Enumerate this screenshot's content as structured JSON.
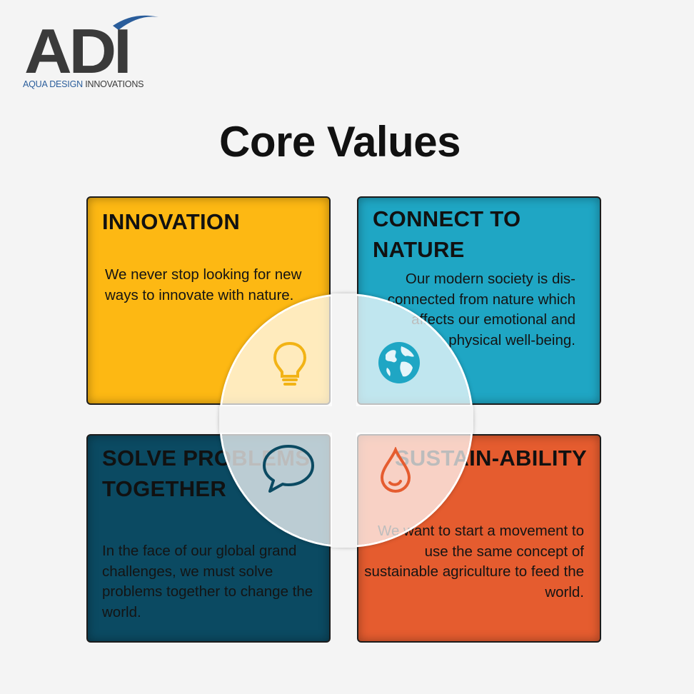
{
  "logo": {
    "mark": "ADI",
    "tagline_part1": "AQUA DESIGN ",
    "tagline_part2": "INNOVATIONS"
  },
  "title": "Core Values",
  "cards": [
    {
      "title": "INNOVATION",
      "text": "We never stop looking for new ways to innovate with nature.",
      "color": "#fdb813",
      "icon": "lightbulb-icon",
      "icon_color": "#f2b315"
    },
    {
      "title": "CONNECT TO NATURE",
      "text": "Our modern society is dis-connected from nature which affects our emotional and physical well-being.",
      "color": "#1fa6c4",
      "icon": "globe-icon",
      "icon_color": "#1fa6c4"
    },
    {
      "title": "SOLVE PROBLEMS TOGETHER",
      "text": "In the face of our global grand challenges, we must solve problems together to change the world.",
      "color": "#0b4a62",
      "icon": "speech-bubble-icon",
      "icon_color": "#0b4a62"
    },
    {
      "title": "SUSTAIN-ABILITY",
      "text": "We want to start a movement to use the same concept of sustainable agriculture to feed the world.",
      "color": "#e55c2f",
      "icon": "water-drop-icon",
      "icon_color": "#e55c2f"
    }
  ]
}
